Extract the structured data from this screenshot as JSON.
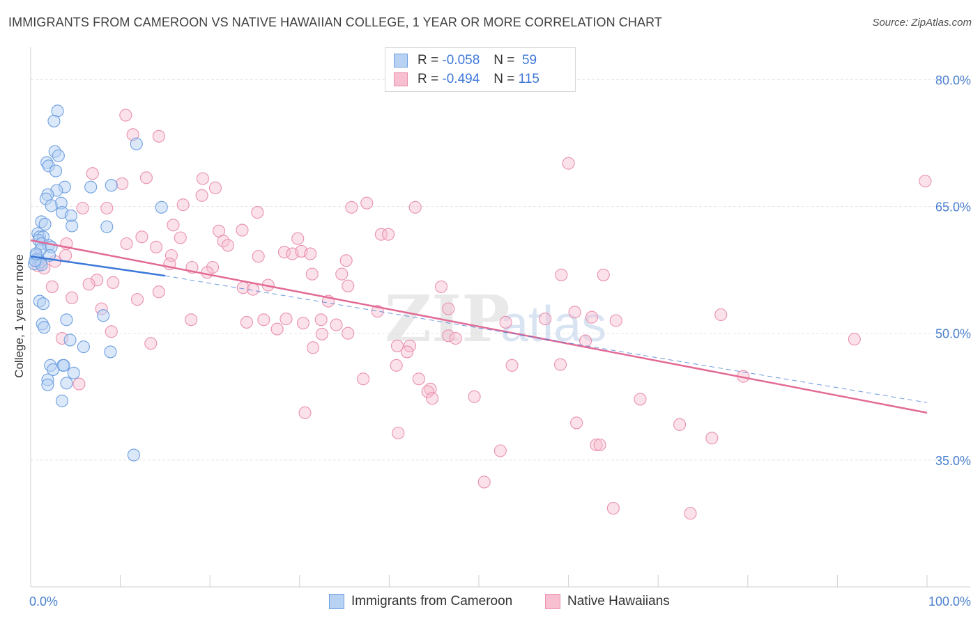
{
  "header": {
    "title": "IMMIGRANTS FROM CAMEROON VS NATIVE HAWAIIAN COLLEGE, 1 YEAR OR MORE CORRELATION CHART",
    "source": "Source: ZipAtlas.com"
  },
  "legend": {
    "rows": [
      {
        "r_label": "R =",
        "r_value": "-0.058",
        "n_label": "N =",
        "n_value": "59"
      },
      {
        "r_label": "R =",
        "r_value": "-0.494",
        "n_label": "N =",
        "n_value": "115"
      }
    ]
  },
  "bottom_legend": {
    "items": [
      {
        "label": "Immigrants from Cameroon"
      },
      {
        "label": "Native Hawaiians"
      }
    ]
  },
  "watermark": {
    "part1": "ZIP",
    "part2": "atlas"
  },
  "colors": {
    "blue_fill": "#b8d2f3",
    "blue_stroke": "#6d9fe0",
    "blue_line": "#3c78d8",
    "pink_fill": "#f7bfd0",
    "pink_stroke": "#e990ae",
    "pink_line": "#e26a95",
    "tick_text": "#4a7fcf",
    "grid": "#e3e3e3"
  },
  "chart_data": {
    "type": "scatter",
    "title": "IMMIGRANTS FROM CAMEROON VS NATIVE HAWAIIAN COLLEGE, 1 YEAR OR MORE CORRELATION CHART",
    "xlabel": "",
    "ylabel": "College, 1 year or more",
    "xlim": [
      0,
      100
    ],
    "ylim": [
      20,
      83
    ],
    "x_tick_labels": [
      "0.0%",
      "100.0%"
    ],
    "y_ticks": [
      35,
      50,
      65,
      80
    ],
    "y_tick_labels": [
      "35.0%",
      "50.0%",
      "65.0%",
      "80.0%"
    ],
    "grid": true,
    "legend_position": "top-center",
    "series": [
      {
        "name": "Immigrants from Cameroon",
        "color": "#6d9fe0",
        "r": -0.058,
        "n": 59,
        "trend": {
          "x": [
            0,
            15
          ],
          "y": [
            59.1,
            56.8
          ]
        },
        "trend_ext": {
          "x": [
            15,
            100
          ],
          "y": [
            56.8,
            41.8
          ]
        },
        "points": [
          [
            3.0,
            76.3
          ],
          [
            2.6,
            75.1
          ],
          [
            11.8,
            72.4
          ],
          [
            2.7,
            71.5
          ],
          [
            3.1,
            71.0
          ],
          [
            1.8,
            70.2
          ],
          [
            2.0,
            69.8
          ],
          [
            2.8,
            69.2
          ],
          [
            9.0,
            67.5
          ],
          [
            3.8,
            67.3
          ],
          [
            6.7,
            67.3
          ],
          [
            2.9,
            66.9
          ],
          [
            1.9,
            66.4
          ],
          [
            1.7,
            65.9
          ],
          [
            3.4,
            65.4
          ],
          [
            2.3,
            65.1
          ],
          [
            14.6,
            64.9
          ],
          [
            3.5,
            64.3
          ],
          [
            4.5,
            63.9
          ],
          [
            1.2,
            63.2
          ],
          [
            1.6,
            62.9
          ],
          [
            4.6,
            62.7
          ],
          [
            8.5,
            62.6
          ],
          [
            0.8,
            61.8
          ],
          [
            1.0,
            61.4
          ],
          [
            1.4,
            61.4
          ],
          [
            0.9,
            61.0
          ],
          [
            1.2,
            60.6
          ],
          [
            2.0,
            60.4
          ],
          [
            2.3,
            60.2
          ],
          [
            1.1,
            59.9
          ],
          [
            0.6,
            59.2
          ],
          [
            2.1,
            59.2
          ],
          [
            0.7,
            58.8
          ],
          [
            0.8,
            58.7
          ],
          [
            1.1,
            58.4
          ],
          [
            0.4,
            58.2
          ],
          [
            1.2,
            58.1
          ],
          [
            1.0,
            53.8
          ],
          [
            1.4,
            53.5
          ],
          [
            8.1,
            52.1
          ],
          [
            4.0,
            51.6
          ],
          [
            1.3,
            51.1
          ],
          [
            1.5,
            50.7
          ],
          [
            4.4,
            49.2
          ],
          [
            5.9,
            48.4
          ],
          [
            8.9,
            47.8
          ],
          [
            2.2,
            46.2
          ],
          [
            3.6,
            46.2
          ],
          [
            3.7,
            46.2
          ],
          [
            2.5,
            45.7
          ],
          [
            4.8,
            45.3
          ],
          [
            1.9,
            44.5
          ],
          [
            4.0,
            44.1
          ],
          [
            1.9,
            43.9
          ],
          [
            3.5,
            42.0
          ],
          [
            11.5,
            35.6
          ],
          [
            0.5,
            58.6
          ],
          [
            0.6,
            59.4
          ]
        ]
      },
      {
        "name": "Native Hawaiians",
        "color": "#e990ae",
        "r": -0.494,
        "n": 115,
        "trend": {
          "x": [
            0,
            100
          ],
          "y": [
            61.0,
            40.6
          ]
        },
        "points": [
          [
            10.6,
            75.8
          ],
          [
            11.4,
            73.5
          ],
          [
            14.3,
            73.3
          ],
          [
            60.0,
            70.1
          ],
          [
            6.9,
            68.9
          ],
          [
            10.2,
            67.7
          ],
          [
            12.9,
            68.4
          ],
          [
            19.2,
            68.3
          ],
          [
            99.8,
            68.0
          ],
          [
            20.6,
            67.2
          ],
          [
            19.1,
            66.3
          ],
          [
            17.0,
            65.2
          ],
          [
            37.5,
            65.4
          ],
          [
            35.8,
            64.9
          ],
          [
            42.9,
            64.9
          ],
          [
            5.8,
            64.8
          ],
          [
            8.5,
            64.8
          ],
          [
            25.3,
            64.3
          ],
          [
            15.9,
            62.8
          ],
          [
            21.0,
            62.1
          ],
          [
            23.6,
            62.2
          ],
          [
            39.1,
            61.7
          ],
          [
            39.9,
            61.7
          ],
          [
            12.4,
            61.4
          ],
          [
            16.7,
            61.3
          ],
          [
            29.8,
            61.2
          ],
          [
            21.5,
            60.9
          ],
          [
            10.7,
            60.6
          ],
          [
            4.0,
            60.6
          ],
          [
            22.0,
            60.4
          ],
          [
            14.0,
            60.2
          ],
          [
            28.3,
            59.6
          ],
          [
            29.2,
            59.4
          ],
          [
            30.2,
            59.7
          ],
          [
            31.2,
            59.4
          ],
          [
            25.4,
            59.1
          ],
          [
            15.7,
            59.2
          ],
          [
            3.9,
            59.2
          ],
          [
            35.2,
            58.6
          ],
          [
            1.0,
            58.4
          ],
          [
            2.7,
            58.5
          ],
          [
            15.5,
            58.2
          ],
          [
            18.0,
            57.8
          ],
          [
            20.3,
            57.8
          ],
          [
            1.5,
            57.7
          ],
          [
            19.7,
            57.2
          ],
          [
            0.8,
            58.0
          ],
          [
            31.4,
            57.0
          ],
          [
            34.7,
            57.0
          ],
          [
            59.2,
            56.9
          ],
          [
            63.9,
            56.9
          ],
          [
            7.4,
            56.3
          ],
          [
            6.5,
            55.8
          ],
          [
            9.2,
            56.0
          ],
          [
            26.5,
            55.7
          ],
          [
            2.4,
            55.5
          ],
          [
            23.7,
            55.4
          ],
          [
            35.4,
            55.6
          ],
          [
            45.8,
            55.5
          ],
          [
            24.8,
            55.2
          ],
          [
            14.3,
            54.9
          ],
          [
            4.6,
            54.2
          ],
          [
            11.9,
            54.0
          ],
          [
            33.2,
            53.8
          ],
          [
            7.9,
            52.9
          ],
          [
            46.6,
            52.9
          ],
          [
            60.7,
            52.5
          ],
          [
            38.7,
            52.6
          ],
          [
            62.6,
            51.9
          ],
          [
            77.0,
            52.2
          ],
          [
            26.0,
            51.6
          ],
          [
            28.5,
            51.7
          ],
          [
            17.9,
            51.6
          ],
          [
            32.4,
            51.6
          ],
          [
            53.0,
            51.3
          ],
          [
            65.3,
            51.5
          ],
          [
            57.4,
            51.7
          ],
          [
            24.1,
            51.3
          ],
          [
            30.4,
            51.2
          ],
          [
            34.1,
            51.0
          ],
          [
            27.5,
            50.5
          ],
          [
            9.0,
            50.2
          ],
          [
            35.4,
            50.0
          ],
          [
            32.5,
            49.9
          ],
          [
            46.6,
            49.7
          ],
          [
            47.4,
            49.4
          ],
          [
            3.5,
            49.4
          ],
          [
            61.9,
            49.1
          ],
          [
            91.9,
            49.3
          ],
          [
            13.4,
            48.8
          ],
          [
            31.5,
            48.3
          ],
          [
            42.3,
            48.5
          ],
          [
            40.9,
            48.5
          ],
          [
            42.0,
            47.8
          ],
          [
            40.8,
            46.2
          ],
          [
            53.7,
            46.2
          ],
          [
            59.1,
            46.3
          ],
          [
            37.1,
            44.6
          ],
          [
            43.3,
            44.6
          ],
          [
            79.5,
            44.9
          ],
          [
            5.4,
            44.0
          ],
          [
            44.6,
            43.4
          ],
          [
            44.3,
            43.1
          ],
          [
            49.5,
            42.5
          ],
          [
            68.0,
            42.2
          ],
          [
            44.8,
            42.3
          ],
          [
            30.6,
            40.6
          ],
          [
            60.9,
            39.4
          ],
          [
            72.4,
            39.2
          ],
          [
            41.0,
            38.2
          ],
          [
            76.0,
            37.6
          ],
          [
            63.1,
            36.8
          ],
          [
            52.4,
            36.1
          ],
          [
            50.6,
            32.4
          ],
          [
            65.0,
            29.3
          ],
          [
            73.6,
            28.7
          ],
          [
            63.5,
            36.8
          ]
        ]
      }
    ]
  }
}
